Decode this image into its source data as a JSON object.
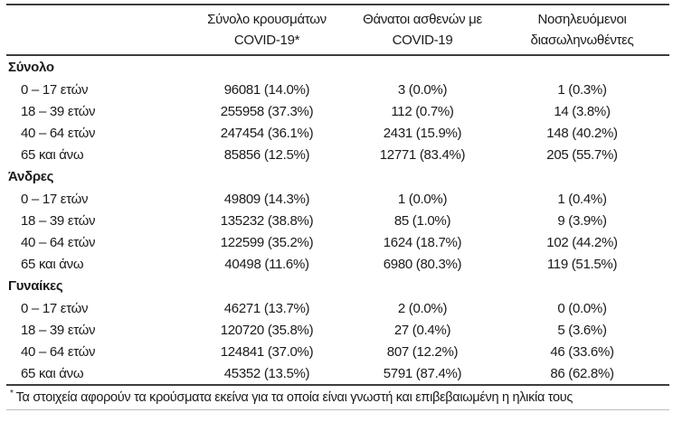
{
  "colors": {
    "text": "#1a1a1a",
    "rule_dark": "#3d3d3d",
    "rule_light": "#bdbdbd",
    "background": "#ffffff"
  },
  "table": {
    "headers": [
      {
        "line1": "Σύνολο κρουσμάτων",
        "line2": "COVID-19*"
      },
      {
        "line1": "Θάνατοι ασθενών με",
        "line2": "COVID-19"
      },
      {
        "line1": "Νοσηλευόμενοι",
        "line2": "διασωληνωθέντες"
      }
    ],
    "sections": [
      {
        "label": "Σύνολο",
        "rows": [
          {
            "label": "0 – 17 ετών",
            "cases": "96081 (14.0%)",
            "deaths": "3 (0.0%)",
            "intubated": "1 (0.3%)"
          },
          {
            "label": "18 – 39 ετών",
            "cases": "255958 (37.3%)",
            "deaths": "112 (0.7%)",
            "intubated": "14 (3.8%)"
          },
          {
            "label": "40 – 64 ετών",
            "cases": "247454 (36.1%)",
            "deaths": "2431 (15.9%)",
            "intubated": "148 (40.2%)"
          },
          {
            "label": "65 και άνω",
            "cases": "85856 (12.5%)",
            "deaths": "12771 (83.4%)",
            "intubated": "205 (55.7%)"
          }
        ]
      },
      {
        "label": "Άνδρες",
        "rows": [
          {
            "label": "0 – 17 ετών",
            "cases": "49809 (14.3%)",
            "deaths": "1 (0.0%)",
            "intubated": "1 (0.4%)"
          },
          {
            "label": "18 – 39 ετών",
            "cases": "135232 (38.8%)",
            "deaths": "85 (1.0%)",
            "intubated": "9 (3.9%)"
          },
          {
            "label": "40 – 64 ετών",
            "cases": "122599 (35.2%)",
            "deaths": "1624 (18.7%)",
            "intubated": "102 (44.2%)"
          },
          {
            "label": "65 και άνω",
            "cases": "40498 (11.6%)",
            "deaths": "6980 (80.3%)",
            "intubated": "119 (51.5%)"
          }
        ]
      },
      {
        "label": "Γυναίκες",
        "rows": [
          {
            "label": "0 – 17 ετών",
            "cases": "46271 (13.7%)",
            "deaths": "2 (0.0%)",
            "intubated": "0 (0.0%)"
          },
          {
            "label": "18 – 39 ετών",
            "cases": "120720 (35.8%)",
            "deaths": "27 (0.4%)",
            "intubated": "5 (3.6%)"
          },
          {
            "label": "40 – 64 ετών",
            "cases": "124841 (37.0%)",
            "deaths": "807 (12.2%)",
            "intubated": "46 (33.6%)"
          },
          {
            "label": "65 και άνω",
            "cases": "45352 (13.5%)",
            "deaths": "5791 (87.4%)",
            "intubated": "86 (62.8%)"
          }
        ]
      }
    ]
  },
  "footnote": {
    "marker": "*",
    "text": "Τα στοιχεία αφορούν τα κρούσματα εκείνα για τα οποία είναι γνωστή και επιβεβαιωμένη η ηλικία τους"
  }
}
